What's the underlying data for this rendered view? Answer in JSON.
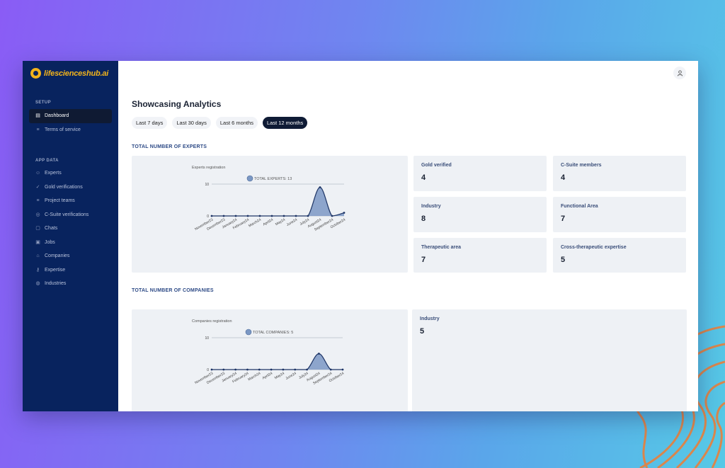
{
  "brand": {
    "name": "lifescienceshub.ai"
  },
  "sidebar": {
    "setup_label": "SETUP",
    "setup_items": [
      {
        "label": "Dashboard",
        "icon": "dashboard-icon",
        "active": true
      },
      {
        "label": "Terms of service",
        "icon": "list-icon",
        "active": false
      }
    ],
    "appdata_label": "APP DATA",
    "appdata_items": [
      {
        "label": "Experts",
        "icon": "user-icon"
      },
      {
        "label": "Gold verifications",
        "icon": "user-check-icon"
      },
      {
        "label": "Project teams",
        "icon": "list-icon"
      },
      {
        "label": "C-Suite verifications",
        "icon": "badge-icon"
      },
      {
        "label": "Chats",
        "icon": "chat-icon"
      },
      {
        "label": "Jobs",
        "icon": "briefcase-icon"
      },
      {
        "label": "Companies",
        "icon": "building-icon"
      },
      {
        "label": "Expertise",
        "icon": "key-icon"
      },
      {
        "label": "Industries",
        "icon": "database-icon"
      }
    ]
  },
  "main": {
    "title": "Showcasing Analytics",
    "tabs": [
      {
        "label": "Last 7 days",
        "active": false
      },
      {
        "label": "Last 30 days",
        "active": false
      },
      {
        "label": "Last 6 months",
        "active": false
      },
      {
        "label": "Last 12 months",
        "active": true
      }
    ],
    "experts_section": "TOTAL NUMBER OF EXPERTS",
    "companies_section": "TOTAL NUMBER OF COMPANIES",
    "expert_stats": [
      {
        "label": "Gold verified",
        "value": "4"
      },
      {
        "label": "C-Suite members",
        "value": "4"
      },
      {
        "label": "Industry",
        "value": "8"
      },
      {
        "label": "Functional Area",
        "value": "7"
      },
      {
        "label": "Therapeutic area",
        "value": "7"
      },
      {
        "label": "Cross-therapeutic expertise",
        "value": "5"
      }
    ],
    "company_stats": [
      {
        "label": "Industry",
        "value": "5"
      }
    ]
  },
  "chart_data": [
    {
      "type": "area",
      "title": "Experts registration",
      "legend": "TOTAL EXPERTS: 13",
      "series_color": "#7b98c4",
      "categories": [
        "November23",
        "December23",
        "January24",
        "February24",
        "March24",
        "April24",
        "May24",
        "June24",
        "July24",
        "August24",
        "September24",
        "October24"
      ],
      "values": [
        0,
        0,
        0,
        0,
        0,
        0,
        0,
        0,
        0,
        9,
        0,
        1
      ],
      "ylim": [
        0,
        10
      ],
      "yticks": [
        0,
        10
      ]
    },
    {
      "type": "area",
      "title": "Companies registration",
      "legend": "TOTAL COMPANIES: 5",
      "series_color": "#7b98c4",
      "categories": [
        "November23",
        "December23",
        "January24",
        "February24",
        "March24",
        "April24",
        "May24",
        "June24",
        "July24",
        "August24",
        "September24",
        "October24"
      ],
      "values": [
        0,
        0,
        0,
        0,
        0,
        0,
        0,
        0,
        0,
        5,
        0,
        0
      ],
      "ylim": [
        0,
        10
      ],
      "yticks": [
        0,
        10
      ]
    }
  ]
}
